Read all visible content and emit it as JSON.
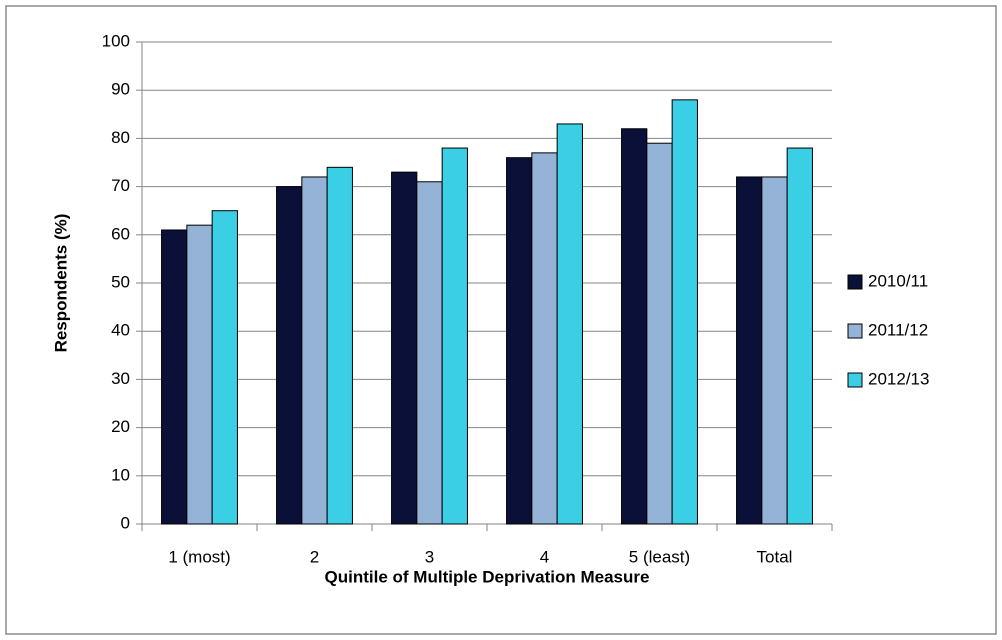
{
  "chart_data": {
    "type": "bar",
    "x_label": "Quintile of Multiple Deprivation Measure",
    "y_label": "Respondents (%)",
    "categories": [
      "1 (most)",
      "2",
      "3",
      "4",
      "5 (least)",
      "Total"
    ],
    "series": [
      {
        "name": "2010/11",
        "color": "#0b1038",
        "values": [
          61,
          70,
          73,
          76,
          82,
          72
        ]
      },
      {
        "name": "2011/12",
        "color": "#95b3d7",
        "values": [
          62,
          72,
          71,
          77,
          79,
          72
        ]
      },
      {
        "name": "2012/13",
        "color": "#3acfe5",
        "values": [
          65,
          74,
          78,
          83,
          88,
          78
        ]
      }
    ],
    "ylim": [
      0,
      100
    ],
    "yticks": [
      0,
      10,
      20,
      30,
      40,
      50,
      60,
      70,
      80,
      90,
      100
    ],
    "grid": true,
    "legend": "right"
  }
}
